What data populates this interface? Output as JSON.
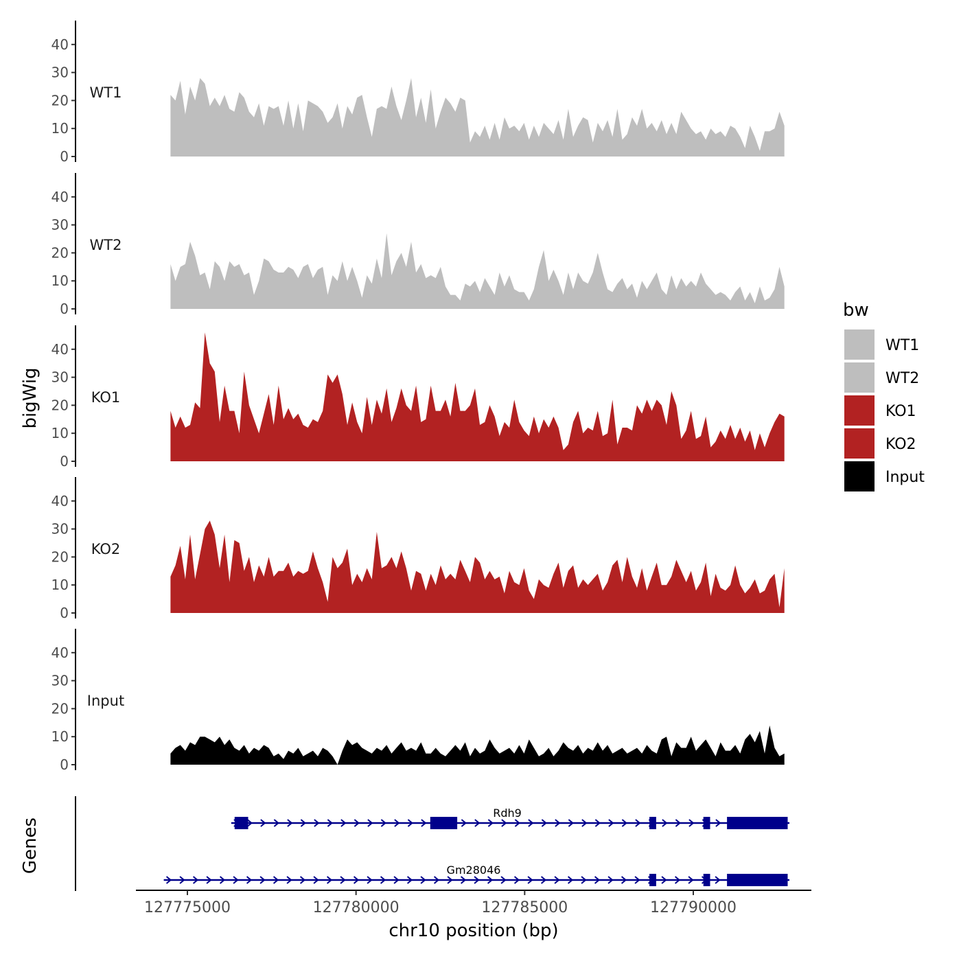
{
  "chart_data": {
    "type": "area",
    "title": "",
    "xlabel": "chr10 position (bp)",
    "ylabel": "bigWig",
    "genes_label": "Genes",
    "xlim": [
      127773900,
      127792900
    ],
    "ylim": [
      0,
      48
    ],
    "y_ticks": [
      0,
      10,
      20,
      30,
      40
    ],
    "y_tick_labels": [
      "0",
      "10",
      "20",
      "30",
      "40"
    ],
    "x_ticks": [
      127775000,
      127780000,
      127785000,
      127790000
    ],
    "x_tick_labels": [
      "127775000",
      "127780000",
      "127785000",
      "127790000"
    ],
    "legend": {
      "title": "bw",
      "position": "right",
      "entries": [
        {
          "label": "WT1",
          "color": "#BEBEBE"
        },
        {
          "label": "WT2",
          "color": "#BEBEBE"
        },
        {
          "label": "KO1",
          "color": "#B22222"
        },
        {
          "label": "KO2",
          "color": "#B22222"
        },
        {
          "label": "Input",
          "color": "#000000"
        }
      ]
    },
    "series": [
      {
        "name": "WT1",
        "color": "#BEBEBE",
        "x_start": 127774500,
        "x_end": 127792700,
        "values": [
          22,
          20,
          27,
          15,
          25,
          20,
          28,
          26,
          18,
          21,
          18,
          22,
          17,
          16,
          23,
          21,
          16,
          14,
          19,
          11,
          18,
          17,
          18,
          11,
          20,
          10,
          19,
          9,
          20,
          19,
          18,
          16,
          12,
          14,
          19,
          10,
          18,
          15,
          21,
          22,
          14,
          7,
          17,
          18,
          17,
          25,
          18,
          13,
          20,
          28,
          14,
          21,
          12,
          24,
          10,
          16,
          21,
          19,
          16,
          21,
          20,
          5,
          9,
          7,
          11,
          6,
          12,
          6,
          14,
          10,
          11,
          9,
          12,
          6,
          11,
          7,
          12,
          10,
          8,
          13,
          6,
          17,
          7,
          11,
          14,
          13,
          5,
          12,
          9,
          13,
          7,
          17,
          6,
          8,
          14,
          11,
          17,
          10,
          12,
          9,
          13,
          8,
          12,
          8,
          16,
          13,
          10,
          8,
          9,
          6,
          10,
          8,
          9,
          7,
          11,
          10,
          7,
          3,
          11,
          7,
          2,
          9,
          9,
          10,
          16,
          11
        ]
      },
      {
        "name": "WT2",
        "color": "#BEBEBE",
        "x_start": 127774500,
        "x_end": 127792700,
        "values": [
          16,
          10,
          15,
          16,
          24,
          19,
          12,
          13,
          7,
          17,
          15,
          10,
          17,
          15,
          16,
          12,
          13,
          5,
          10,
          18,
          17,
          14,
          13,
          13,
          15,
          14,
          11,
          15,
          16,
          11,
          14,
          15,
          5,
          12,
          10,
          17,
          10,
          15,
          10,
          4,
          12,
          9,
          18,
          11,
          27,
          12,
          17,
          20,
          15,
          24,
          13,
          16,
          11,
          12,
          11,
          15,
          8,
          5,
          5,
          3,
          9,
          8,
          10,
          6,
          11,
          8,
          5,
          13,
          8,
          12,
          7,
          6,
          6,
          3,
          7,
          15,
          21,
          10,
          14,
          10,
          5,
          13,
          7,
          13,
          10,
          9,
          13,
          20,
          13,
          7,
          6,
          9,
          11,
          7,
          9,
          4,
          10,
          7,
          10,
          13,
          7,
          5,
          12,
          7,
          11,
          8,
          10,
          8,
          13,
          9,
          7,
          5,
          6,
          5,
          3,
          6,
          8,
          3,
          6,
          2,
          8,
          3,
          4,
          7,
          15,
          8
        ]
      },
      {
        "name": "KO1",
        "color": "#B22222",
        "x_start": 127774500,
        "x_end": 127792700,
        "values": [
          18,
          12,
          16,
          12,
          13,
          21,
          19,
          46,
          35,
          32,
          14,
          27,
          18,
          18,
          10,
          32,
          20,
          15,
          10,
          17,
          24,
          13,
          27,
          15,
          19,
          15,
          17,
          13,
          12,
          15,
          14,
          18,
          31,
          28,
          31,
          24,
          13,
          21,
          14,
          10,
          23,
          13,
          22,
          17,
          26,
          14,
          19,
          26,
          20,
          18,
          27,
          14,
          15,
          27,
          18,
          18,
          22,
          16,
          28,
          18,
          18,
          20,
          26,
          13,
          14,
          20,
          16,
          9,
          14,
          12,
          22,
          14,
          11,
          9,
          16,
          10,
          15,
          12,
          16,
          12,
          4,
          6,
          14,
          18,
          10,
          12,
          11,
          18,
          9,
          10,
          22,
          6,
          12,
          12,
          11,
          20,
          17,
          22,
          18,
          22,
          20,
          13,
          25,
          20,
          8,
          11,
          18,
          8,
          9,
          16,
          5,
          7,
          11,
          8,
          13,
          8,
          12,
          7,
          11,
          4,
          10,
          5,
          10,
          14,
          17,
          16
        ]
      },
      {
        "name": "KO2",
        "color": "#B22222",
        "x_start": 127774500,
        "x_end": 127792700,
        "values": [
          13,
          17,
          24,
          12,
          28,
          12,
          21,
          30,
          33,
          28,
          16,
          28,
          11,
          26,
          25,
          15,
          20,
          11,
          17,
          13,
          20,
          13,
          15,
          15,
          18,
          13,
          15,
          14,
          15,
          22,
          16,
          11,
          4,
          20,
          16,
          18,
          23,
          10,
          14,
          11,
          16,
          12,
          29,
          16,
          17,
          20,
          16,
          22,
          16,
          8,
          15,
          14,
          8,
          14,
          10,
          17,
          12,
          14,
          12,
          19,
          15,
          11,
          20,
          18,
          12,
          15,
          12,
          13,
          7,
          15,
          11,
          10,
          16,
          8,
          5,
          12,
          10,
          9,
          14,
          18,
          9,
          15,
          17,
          9,
          12,
          10,
          12,
          14,
          8,
          11,
          17,
          19,
          11,
          20,
          13,
          9,
          16,
          8,
          13,
          18,
          10,
          10,
          13,
          19,
          15,
          11,
          15,
          8,
          11,
          18,
          6,
          14,
          9,
          8,
          10,
          17,
          10,
          7,
          9,
          12,
          7,
          8,
          12,
          14,
          2,
          16
        ]
      },
      {
        "name": "Input",
        "color": "#000000",
        "x_start": 127774500,
        "x_end": 127792700,
        "values": [
          4,
          6,
          7,
          5,
          8,
          7,
          10,
          10,
          9,
          8,
          10,
          7,
          9,
          6,
          5,
          7,
          4,
          6,
          5,
          7,
          6,
          3,
          4,
          2,
          5,
          4,
          6,
          3,
          4,
          5,
          3,
          6,
          5,
          3,
          0,
          5,
          9,
          7,
          8,
          6,
          5,
          4,
          6,
          5,
          7,
          4,
          6,
          8,
          5,
          6,
          5,
          8,
          4,
          4,
          6,
          4,
          3,
          5,
          7,
          5,
          8,
          3,
          6,
          4,
          5,
          9,
          6,
          4,
          5,
          6,
          4,
          7,
          4,
          9,
          6,
          3,
          4,
          6,
          3,
          5,
          8,
          6,
          5,
          7,
          4,
          6,
          5,
          8,
          5,
          7,
          4,
          5,
          6,
          4,
          5,
          6,
          4,
          7,
          5,
          4,
          9,
          10,
          3,
          8,
          6,
          6,
          10,
          5,
          7,
          9,
          6,
          3,
          8,
          5,
          5,
          7,
          4,
          9,
          11,
          8,
          12,
          4,
          14,
          6,
          3,
          4
        ]
      }
    ],
    "genes": [
      {
        "name": "Rdh9",
        "start": 127776300,
        "end": 127792850,
        "exons": [
          [
            127776400,
            127776800
          ],
          [
            127782200,
            127783000
          ],
          [
            127788700,
            127788900
          ],
          [
            127790300,
            127790500
          ],
          [
            127791000,
            127792800
          ]
        ]
      },
      {
        "name": "Gm28046",
        "start": 127774300,
        "end": 127792850,
        "exons": [
          [
            127788700,
            127788900
          ],
          [
            127790300,
            127790500
          ],
          [
            127791000,
            127792800
          ]
        ]
      }
    ]
  }
}
